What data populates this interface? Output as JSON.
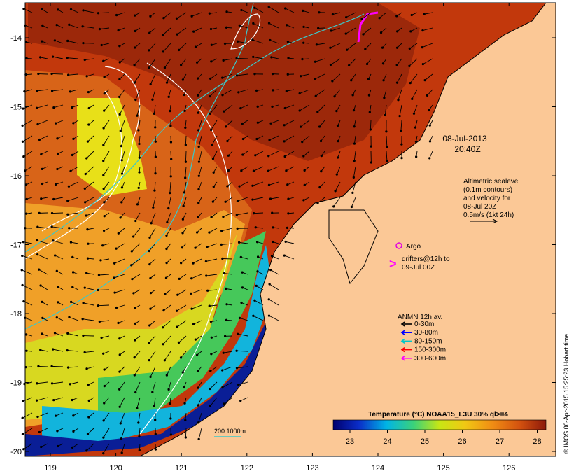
{
  "timestamp": {
    "date": "08-Jul-2013",
    "time": "20:40Z"
  },
  "altimetry_note": [
    "Altimetric sealevel",
    "(0.1m contours)",
    "and velocity for",
    "08-Jul 20Z",
    "0.5m/s (1kt 24h)"
  ],
  "argo_label": "Argo",
  "drifters_label": [
    "drifters@12h to",
    "09-Jul 00Z"
  ],
  "anmn": {
    "title": "ANMN 12h av.",
    "items": [
      {
        "label": "0-30m",
        "color": "#000000"
      },
      {
        "label": "30-80m",
        "color": "#0000ff"
      },
      {
        "label": "80-150m",
        "color": "#00c8c8"
      },
      {
        "label": "150-300m",
        "color": "#ff0000"
      },
      {
        "label": "300-600m",
        "color": "#ff00ff"
      }
    ]
  },
  "colorbar": {
    "title": "Temperature (°C) NOAA15_L3U 30% ql>=4",
    "ticks": [
      "23",
      "24",
      "25",
      "26",
      "27",
      "28"
    ]
  },
  "scale_label": "200  1000m",
  "credit": "© IMOS 06-Apr-2015 15:25:23 Hobart time",
  "axes": {
    "x_ticks": [
      "119",
      "120",
      "121",
      "122",
      "123",
      "124",
      "125",
      "126"
    ],
    "y_ticks": [
      "-14",
      "-15",
      "-16",
      "-17",
      "-18",
      "-19",
      "-20"
    ]
  },
  "colors": {
    "land": "#fbc896",
    "hot": "#a52a0e",
    "warm": "#d25a14",
    "mid": "#f0a020",
    "yellow": "#e6e614",
    "green": "#3cc864",
    "cyan": "#00b4dc",
    "blue": "#0a2d96",
    "navy": "#00005a"
  }
}
